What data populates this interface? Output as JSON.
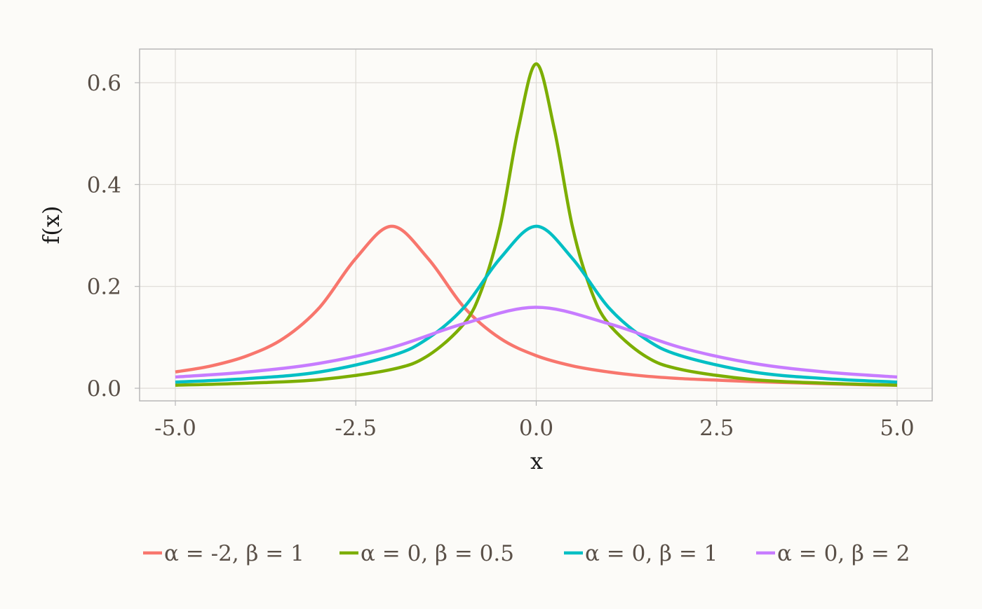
{
  "chart_data": {
    "type": "line",
    "xlabel": "x",
    "ylabel": "f(x)",
    "xlim": [
      -5,
      5
    ],
    "ylim": [
      0,
      0.66
    ],
    "x_ticks": [
      -5,
      -2.5,
      0,
      2.5,
      5
    ],
    "x_tick_labels": [
      "-5.0",
      "-2.5",
      "0.0",
      "2.5",
      "5.0"
    ],
    "y_ticks": [
      0,
      0.2,
      0.4,
      0.6
    ],
    "y_tick_labels": [
      "0.0",
      "0.2",
      "0.4",
      "0.6"
    ],
    "grid": true,
    "legend_position": "bottom",
    "series": [
      {
        "name": "α = -2, β = 1",
        "color": "#f8766d",
        "x": [
          -5,
          -4.5,
          -4,
          -3.5,
          -3,
          -2.5,
          -2,
          -1.5,
          -1,
          -0.5,
          0,
          0.5,
          1,
          1.5,
          2,
          2.5,
          3,
          3.5,
          4,
          4.5,
          5
        ],
        "values": [
          0.032,
          0.044,
          0.064,
          0.098,
          0.159,
          0.255,
          0.318,
          0.255,
          0.159,
          0.098,
          0.064,
          0.044,
          0.032,
          0.024,
          0.019,
          0.016,
          0.013,
          0.011,
          0.009,
          0.007,
          0.006
        ]
      },
      {
        "name": "α = 0, β = 0.5",
        "color": "#7cae00",
        "x": [
          -5,
          -4,
          -3,
          -2,
          -1.5,
          -1,
          -0.75,
          -0.5,
          -0.25,
          0,
          0.25,
          0.5,
          0.75,
          1,
          1.5,
          2,
          3,
          4,
          5
        ],
        "values": [
          0.006,
          0.01,
          0.017,
          0.037,
          0.064,
          0.127,
          0.196,
          0.318,
          0.509,
          0.637,
          0.509,
          0.318,
          0.196,
          0.127,
          0.064,
          0.037,
          0.017,
          0.01,
          0.006
        ]
      },
      {
        "name": "α = 0, β = 1",
        "color": "#00bfc4",
        "x": [
          -5,
          -4,
          -3,
          -2,
          -1.5,
          -1,
          -0.5,
          0,
          0.5,
          1,
          1.5,
          2,
          3,
          4,
          5
        ],
        "values": [
          0.012,
          0.019,
          0.032,
          0.064,
          0.098,
          0.159,
          0.255,
          0.318,
          0.255,
          0.159,
          0.098,
          0.064,
          0.032,
          0.019,
          0.012
        ]
      },
      {
        "name": "α = 0, β = 2",
        "color": "#c77cff",
        "x": [
          -5,
          -4,
          -3,
          -2,
          -1,
          0,
          1,
          2,
          3,
          4,
          5
        ],
        "values": [
          0.022,
          0.032,
          0.049,
          0.08,
          0.127,
          0.159,
          0.127,
          0.08,
          0.049,
          0.032,
          0.022
        ]
      }
    ]
  },
  "colors": {
    "background": "#fcfbf8",
    "grid": "#dedbd6",
    "axis_frame": "#b8b8b8"
  }
}
